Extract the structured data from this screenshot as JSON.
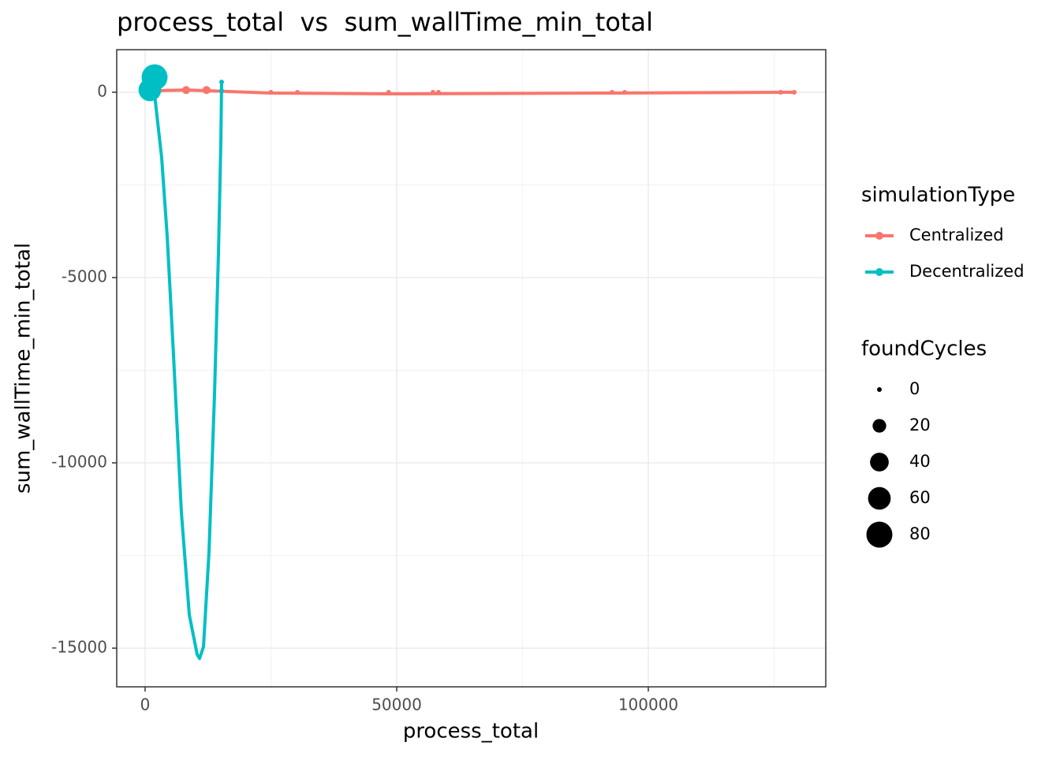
{
  "chart_data": {
    "type": "scatter",
    "title": "process_total  vs  sum_wallTime_min_total",
    "x_label": "process_total",
    "y_label": "sum_wallTime_min_total",
    "xlim": [
      -5643,
      135266
    ],
    "ylim": [
      -16043,
      1149
    ],
    "xticks": [
      0,
      50000,
      100000
    ],
    "yticks": [
      -15000,
      -10000,
      -5000,
      0
    ],
    "grid": true,
    "color_legend_title": "simulationType",
    "size_legend": {
      "title": "foundCycles",
      "values": [
        0,
        20,
        40,
        60,
        80
      ]
    },
    "series": [
      {
        "name": "Centralized",
        "color": "#F8766D",
        "x": [
          1900,
          8150,
          12200,
          25000,
          30250,
          48400,
          57200,
          58300,
          92800,
          95300,
          126300,
          129000
        ],
        "values": [
          50,
          60,
          60,
          0,
          0,
          0,
          0,
          0,
          0,
          0,
          0,
          0
        ],
        "sizes": [
          0,
          5,
          5,
          0,
          0,
          0,
          0,
          0,
          0,
          0,
          0,
          0
        ],
        "smooth": {
          "x": [
            1900,
            8150,
            12200,
            25000,
            48400,
            92800,
            129000
          ],
          "y": [
            43,
            60,
            43,
            -21,
            -43,
            -21,
            0
          ]
        }
      },
      {
        "name": "Decentralized",
        "color": "#00BFC4",
        "x": [
          940,
          1880,
          15200,
          15200
        ],
        "values": [
          64,
          404,
          277,
          40
        ],
        "sizes": [
          60,
          80,
          0,
          0
        ],
        "smooth": {
          "x": [
            940,
            1880,
            3290,
            4390,
            5640,
            7210,
            8780,
            10340,
            10820,
            11600,
            12700,
            13790,
            14580,
            15050,
            15200
          ],
          "y": [
            64,
            -60,
            -1770,
            -3890,
            -7090,
            -11340,
            -14100,
            -15170,
            -15280,
            -14960,
            -12400,
            -8150,
            -4320,
            -1340,
            277
          ]
        }
      }
    ]
  }
}
